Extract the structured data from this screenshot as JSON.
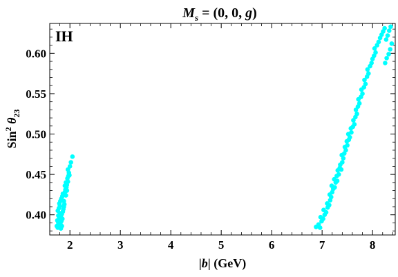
{
  "chart_data": {
    "type": "scatter",
    "title_parts": {
      "symbol": "M",
      "subscript": "s",
      "rest": " = (0, 0, ",
      "var": "g",
      "close": ")"
    },
    "xlabel_parts": {
      "bar_left": "|",
      "var": "b",
      "bar_right": "|",
      "unit": " (GeV)"
    },
    "ylabel_parts": {
      "fn": "Sin",
      "sup": "2",
      "theta": "θ",
      "sub": "23"
    },
    "annotation": "IH",
    "xlim": [
      1.6,
      8.45
    ],
    "ylim": [
      0.375,
      0.637
    ],
    "x_ticks": [
      2,
      3,
      4,
      5,
      6,
      7,
      8
    ],
    "y_ticks": [
      0.4,
      0.45,
      0.5,
      0.55,
      0.6
    ],
    "y_tick_labels": [
      "0.40",
      "0.45",
      "0.50",
      "0.55",
      "0.60"
    ],
    "marker_color": "#00ffff",
    "points": [
      [
        1.76,
        0.384
      ],
      [
        1.78,
        0.388
      ],
      [
        1.75,
        0.393
      ],
      [
        1.79,
        0.396
      ],
      [
        1.77,
        0.399
      ],
      [
        1.8,
        0.402
      ],
      [
        1.76,
        0.405
      ],
      [
        1.82,
        0.383
      ],
      [
        1.84,
        0.386
      ],
      [
        1.81,
        0.389
      ],
      [
        1.83,
        0.392
      ],
      [
        1.78,
        0.408
      ],
      [
        1.8,
        0.411
      ],
      [
        1.85,
        0.395
      ],
      [
        1.82,
        0.398
      ],
      [
        1.79,
        0.414
      ],
      [
        1.84,
        0.401
      ],
      [
        1.81,
        0.417
      ],
      [
        1.86,
        0.404
      ],
      [
        1.83,
        0.42
      ],
      [
        1.87,
        0.407
      ],
      [
        1.85,
        0.423
      ],
      [
        1.88,
        0.41
      ],
      [
        1.86,
        0.426
      ],
      [
        1.89,
        0.413
      ],
      [
        1.9,
        0.428
      ],
      [
        1.91,
        0.431
      ],
      [
        1.92,
        0.424
      ],
      [
        1.93,
        0.434
      ],
      [
        1.94,
        0.437
      ],
      [
        1.92,
        0.44
      ],
      [
        1.96,
        0.441
      ],
      [
        1.95,
        0.445
      ],
      [
        1.97,
        0.448
      ],
      [
        1.98,
        0.452
      ],
      [
        1.96,
        0.456
      ],
      [
        2.0,
        0.46
      ],
      [
        2.02,
        0.465
      ],
      [
        2.05,
        0.472
      ],
      [
        1.77,
        0.39
      ],
      [
        1.88,
        0.417
      ],
      [
        1.9,
        0.436
      ],
      [
        1.94,
        0.43
      ],
      [
        1.74,
        0.386
      ],
      [
        1.99,
        0.449
      ],
      [
        6.88,
        0.385
      ],
      [
        6.93,
        0.388
      ],
      [
        6.96,
        0.384
      ],
      [
        6.99,
        0.392
      ],
      [
        6.97,
        0.397
      ],
      [
        7.02,
        0.395
      ],
      [
        7.05,
        0.4
      ],
      [
        7.03,
        0.406
      ],
      [
        7.08,
        0.403
      ],
      [
        7.11,
        0.409
      ],
      [
        7.1,
        0.414
      ],
      [
        7.14,
        0.412
      ],
      [
        7.16,
        0.418
      ],
      [
        7.18,
        0.422
      ],
      [
        7.15,
        0.425
      ],
      [
        7.2,
        0.428
      ],
      [
        7.22,
        0.432
      ],
      [
        7.19,
        0.436
      ],
      [
        7.25,
        0.434
      ],
      [
        7.27,
        0.44
      ],
      [
        7.24,
        0.444
      ],
      [
        7.3,
        0.442
      ],
      [
        7.29,
        0.448
      ],
      [
        7.33,
        0.45
      ],
      [
        7.31,
        0.455
      ],
      [
        7.35,
        0.458
      ],
      [
        7.38,
        0.456
      ],
      [
        7.36,
        0.462
      ],
      [
        7.4,
        0.465
      ],
      [
        7.42,
        0.47
      ],
      [
        7.39,
        0.474
      ],
      [
        7.44,
        0.476
      ],
      [
        7.47,
        0.48
      ],
      [
        7.45,
        0.484
      ],
      [
        7.5,
        0.486
      ],
      [
        7.49,
        0.491
      ],
      [
        7.53,
        0.493
      ],
      [
        7.55,
        0.496
      ],
      [
        7.52,
        0.5
      ],
      [
        7.58,
        0.502
      ],
      [
        7.57,
        0.507
      ],
      [
        7.61,
        0.509
      ],
      [
        7.64,
        0.512
      ],
      [
        7.62,
        0.517
      ],
      [
        7.66,
        0.521
      ],
      [
        7.69,
        0.525
      ],
      [
        7.67,
        0.53
      ],
      [
        7.71,
        0.534
      ],
      [
        7.74,
        0.538
      ],
      [
        7.72,
        0.543
      ],
      [
        7.77,
        0.546
      ],
      [
        7.8,
        0.55
      ],
      [
        7.78,
        0.555
      ],
      [
        7.83,
        0.558
      ],
      [
        7.86,
        0.562
      ],
      [
        7.84,
        0.567
      ],
      [
        7.89,
        0.571
      ],
      [
        7.92,
        0.575
      ],
      [
        7.9,
        0.58
      ],
      [
        7.95,
        0.584
      ],
      [
        7.98,
        0.588
      ],
      [
        8.0,
        0.593
      ],
      [
        8.03,
        0.597
      ],
      [
        8.06,
        0.601
      ],
      [
        8.04,
        0.606
      ],
      [
        8.09,
        0.61
      ],
      [
        8.12,
        0.614
      ],
      [
        8.15,
        0.619
      ],
      [
        8.18,
        0.623
      ],
      [
        8.21,
        0.627
      ],
      [
        8.24,
        0.631
      ],
      [
        8.27,
        0.617
      ],
      [
        8.3,
        0.622
      ],
      [
        8.33,
        0.628
      ],
      [
        8.36,
        0.633
      ],
      [
        8.38,
        0.612
      ],
      [
        8.35,
        0.605
      ],
      [
        8.32,
        0.599
      ],
      [
        8.28,
        0.594
      ],
      [
        8.25,
        0.588
      ]
    ]
  }
}
